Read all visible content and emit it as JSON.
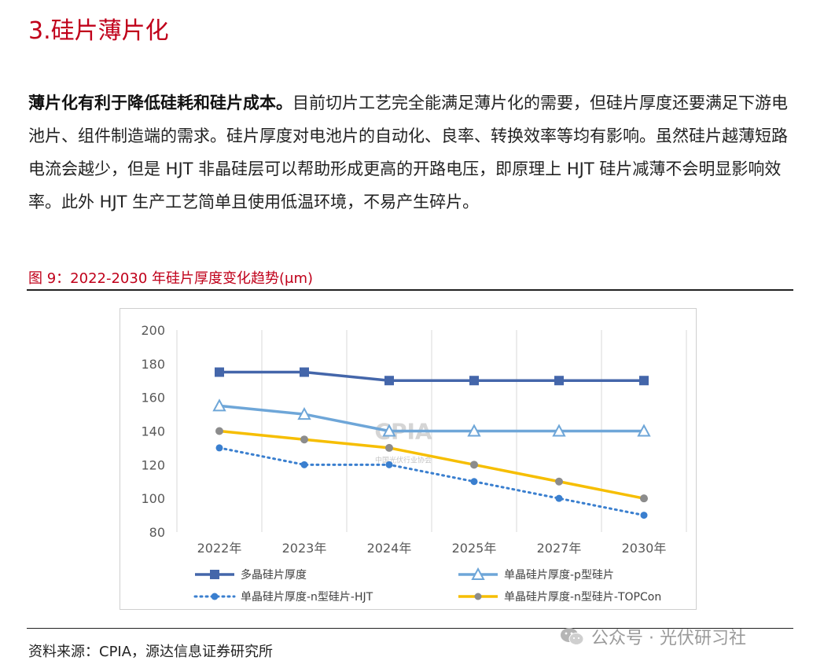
{
  "section_title": "3.硅片薄片化",
  "paragraph": {
    "bold_lead": "薄片化有利于降低硅耗和硅片成本。",
    "text": "目前切片工艺完全能满足薄片化的需要，但硅片厚度还要满足下游电池片、组件制造端的需求。硅片厚度对电池片的自动化、良率、转换效率等均有影响。虽然硅片越薄短路电流会越少，但是 HJT 非晶硅层可以帮助形成更高的开路电压，即原理上 HJT 硅片减薄不会明显影响效率。此外 HJT 生产工艺简单且使用低温环境，不易产生碎片。"
  },
  "figure_caption": "图 9：2022-2030 年硅片厚度变化趋势(μm)",
  "source": "资料来源：CPIA，源达信息证券研究所",
  "watermark": {
    "wechat_text": "公众号 · 光伏研习社",
    "chart_logo": "CPIA",
    "chart_logo_sub": "中国光伏行业协会"
  },
  "colors": {
    "accent_red": "#c0001a",
    "series1": "#4466aa",
    "series2": "#6ea6d8",
    "series3": "#3a7fcf",
    "series4": "#f6be00",
    "series4_markers": "#8c8c8c"
  },
  "chart_data": {
    "type": "line",
    "categories": [
      "2022年",
      "2023年",
      "2024年",
      "2025年",
      "2027年",
      "2030年"
    ],
    "ylim": [
      80,
      200
    ],
    "yticks": [
      200,
      180,
      160,
      140,
      120,
      100,
      80
    ],
    "grid": "vertical",
    "legend_position": "bottom",
    "series": [
      {
        "name": "多晶硅片厚度",
        "values": [
          175,
          175,
          170,
          170,
          170,
          170
        ],
        "marker": "square",
        "line": "solid"
      },
      {
        "name": "单晶硅片厚度-p型硅片",
        "values": [
          155,
          150,
          140,
          140,
          140,
          140
        ],
        "marker": "triangle-open",
        "line": "solid"
      },
      {
        "name": "单晶硅片厚度-n型硅片-HJT",
        "values": [
          130,
          120,
          120,
          110,
          100,
          90
        ],
        "marker": "circle",
        "line": "dotted"
      },
      {
        "name": "单晶硅片厚度-n型硅片-TOPCon",
        "values": [
          140,
          135,
          130,
          120,
          110,
          100
        ],
        "marker": "circle",
        "line": "solid"
      }
    ]
  }
}
